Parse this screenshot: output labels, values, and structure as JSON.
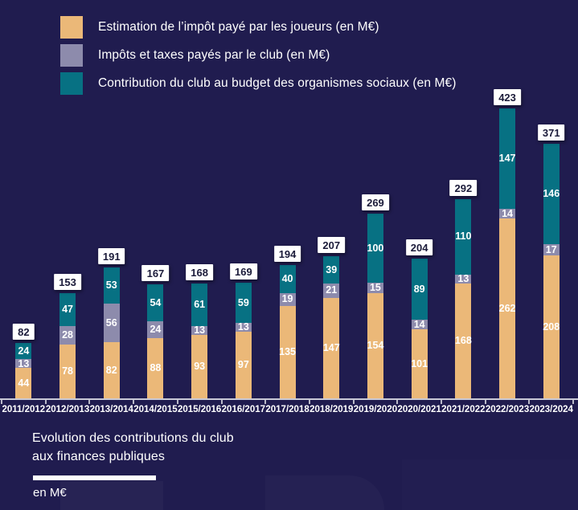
{
  "colors": {
    "background": "#201C4F",
    "players_tax": "#EBB878",
    "club_tax": "#8D8BAC",
    "social_contrib": "#077183",
    "axis": "#C9C9D6",
    "badge_bg": "#FFFFFF",
    "badge_text": "#1B1B3A",
    "text": "#FFFFFF"
  },
  "legend": [
    {
      "key": "players_tax",
      "label": "Estimation de l’impôt payé par les joueurs (en M€)"
    },
    {
      "key": "club_tax",
      "label": "Impôts et taxes payés par le club (en M€)"
    },
    {
      "key": "social_contrib",
      "label": "Contribution du club au budget des organismes sociaux (en M€)"
    }
  ],
  "chart_data": {
    "type": "bar",
    "stacked": true,
    "title": "Evolution des contributions du club aux finances publiques",
    "unit": "en M€",
    "grid": false,
    "legend_position": "top-left",
    "ylim": [
      0,
      440
    ],
    "categories": [
      "2011/2012",
      "2012/2013",
      "2013/2014",
      "2014/2015",
      "2015/2016",
      "2016/2017",
      "2017/2018",
      "2018/2019",
      "2019/2020",
      "2020/2021",
      "2021/2022",
      "2022/2023",
      "2023/2024"
    ],
    "series": [
      {
        "name": "Estimation de l’impôt payé par les joueurs (en M€)",
        "key": "players_tax",
        "values": [
          44,
          78,
          82,
          88,
          93,
          97,
          135,
          147,
          154,
          101,
          168,
          262,
          208
        ]
      },
      {
        "name": "Impôts et taxes payés par le club (en M€)",
        "key": "club_tax",
        "values": [
          13,
          28,
          56,
          24,
          13,
          13,
          19,
          21,
          15,
          14,
          13,
          14,
          17
        ]
      },
      {
        "name": "Contribution du club au budget des organismes sociaux (en M€)",
        "key": "social_contrib",
        "values": [
          24,
          47,
          53,
          54,
          61,
          59,
          40,
          39,
          100,
          89,
          110,
          147,
          146
        ]
      }
    ],
    "totals": [
      82,
      153,
      191,
      167,
      168,
      169,
      194,
      207,
      269,
      204,
      292,
      423,
      371
    ]
  },
  "footer": {
    "title_line1": "Evolution des contributions du club",
    "title_line2": "aux finances publiques",
    "unit": "en M€"
  }
}
